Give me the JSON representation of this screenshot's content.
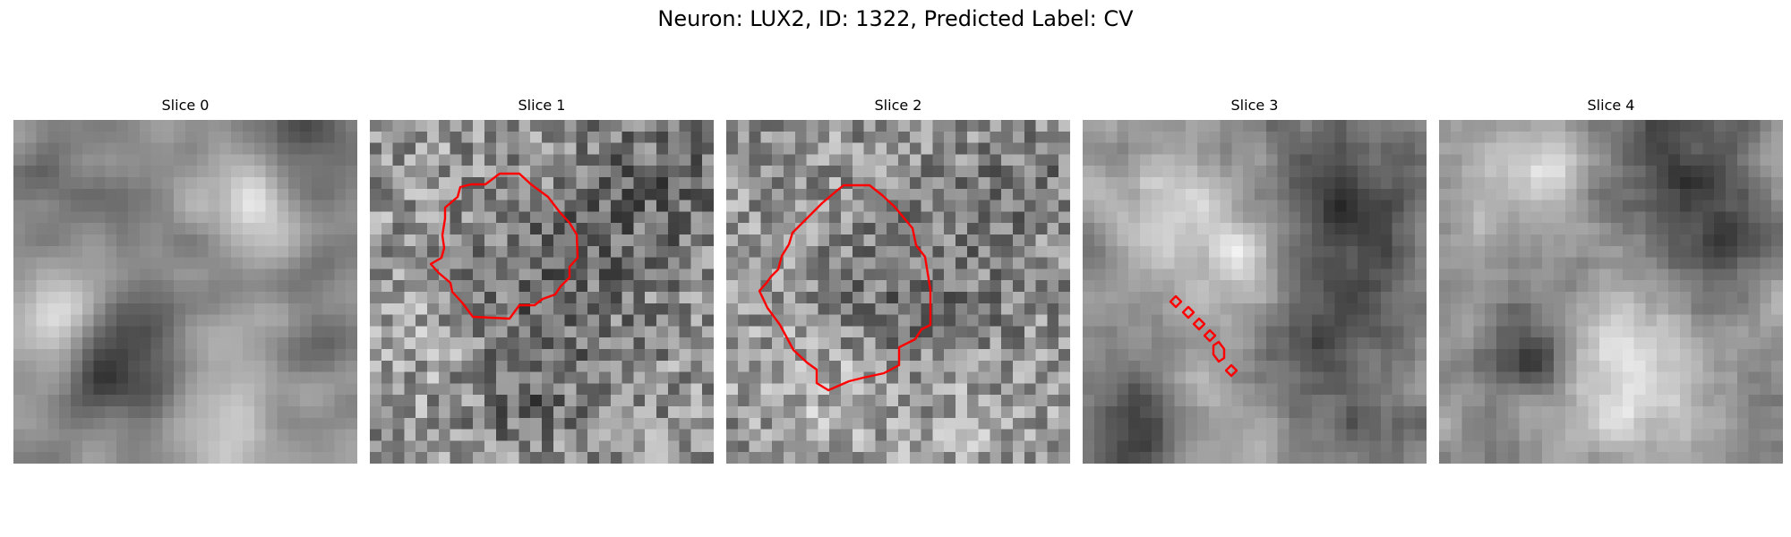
{
  "figure": {
    "title": "Neuron: LUX2, ID: 1322, Predicted Label: CV"
  },
  "colors": {
    "contour": "#ff0000",
    "background": "#ffffff"
  },
  "slices": [
    {
      "title": "Slice 0",
      "has_contour": false
    },
    {
      "title": "Slice 1",
      "has_contour": true
    },
    {
      "title": "Slice 2",
      "has_contour": true
    },
    {
      "title": "Slice 3",
      "has_contour": true
    },
    {
      "title": "Slice 4",
      "has_contour": false
    }
  ]
}
